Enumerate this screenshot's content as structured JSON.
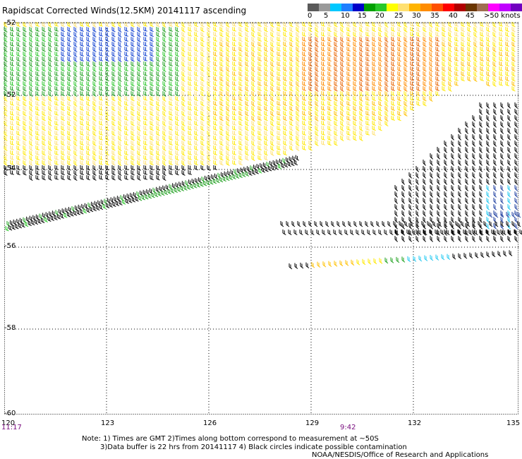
{
  "title": "Rapidscat Corrected Winds(12.5KM) 20141117 ascending",
  "legend": {
    "labels": [
      "0",
      "5",
      "10",
      "15",
      "20",
      "25",
      "30",
      "35",
      "40",
      "45",
      ">50 knots"
    ],
    "colors": [
      "#5a5a5a",
      "#9a9a9a",
      "#00c8ff",
      "#1e7fff",
      "#0000c8",
      "#00a000",
      "#28c828",
      "#ffff00",
      "#ffe070",
      "#ffb400",
      "#ff8c00",
      "#ff5000",
      "#ff0000",
      "#b00000",
      "#6a3500",
      "#a06e50",
      "#ff00ff",
      "#c000ff",
      "#7000c0"
    ]
  },
  "map": {
    "latitudes": [
      "-52",
      "-52",
      "-54",
      "-56",
      "-58",
      "-60"
    ],
    "longitudes": [
      "120",
      "123",
      "126",
      "129",
      "132",
      "135"
    ],
    "times": [
      "11:17",
      "9:42"
    ]
  },
  "notes": {
    "line1": "Note: 1) Times are GMT 2)Times along bottom correspond to measurement at ~50S",
    "line2": "3)Data buffer is 22 hrs from 20141117 4) Black circles indicate possible contamination",
    "line3": "NOAA/NESDIS/Office of Research and Applications"
  }
}
